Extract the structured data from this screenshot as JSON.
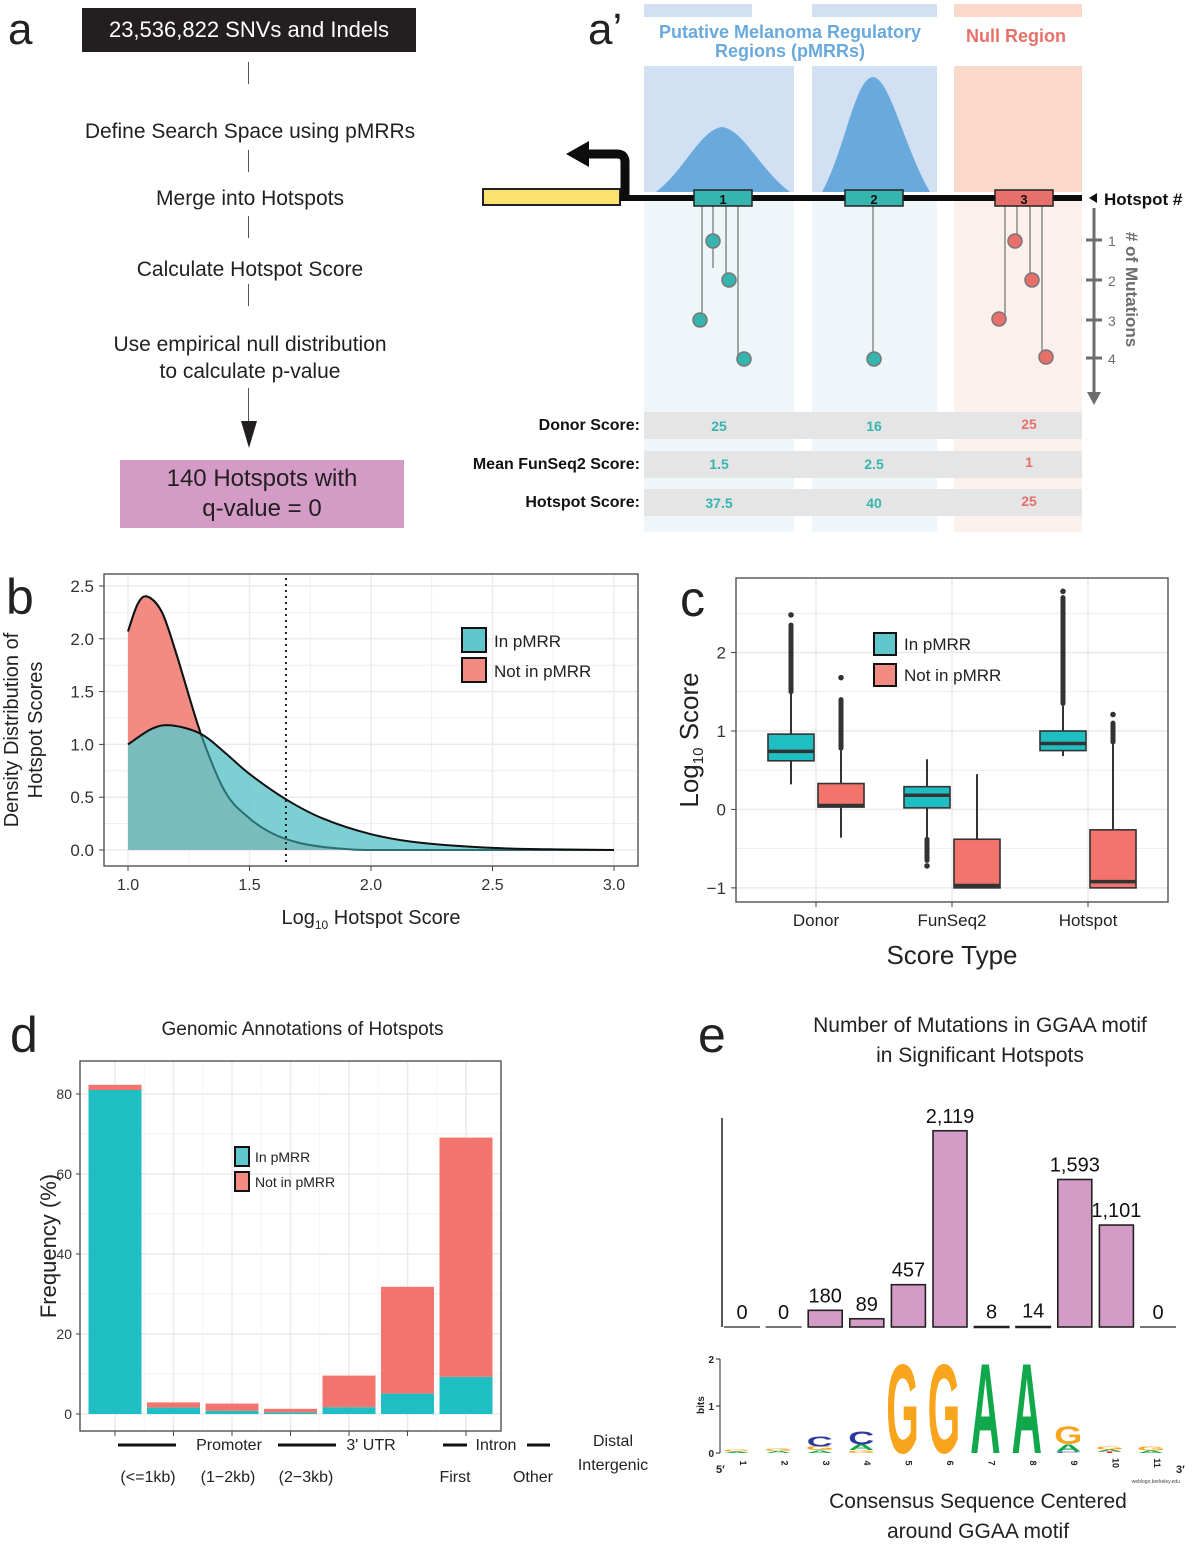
{
  "panels": {
    "a": {
      "letter": "a",
      "top_box": "23,536,822 SNVs and Indels",
      "steps": [
        "Define Search Space using pMRRs",
        "Merge into Hotspots",
        "Calculate Hotspot Score",
        "Use empirical null distribution",
        "to calculate p-value"
      ],
      "result_line1": "140 Hotspots with",
      "result_line2": "q-value = 0",
      "colors": {
        "top_box": "#231f20",
        "result_box": "#d39bc6"
      }
    },
    "a_prime": {
      "letter": "a’",
      "region_pmrr_title_line1": "Putative Melanoma Regulatory",
      "region_pmrr_title_line2": "Regions (pMRRs)",
      "region_null_title": "Null Region",
      "hotspot_axis_label": "Hotspot #",
      "mutations_axis_label": "# of Mutations",
      "mutation_ticks": [
        "1",
        "2",
        "3",
        "4"
      ],
      "hotspots": [
        {
          "id": "1",
          "region": "pMRR",
          "mutation_levels": [
            3,
            1,
            2,
            4
          ]
        },
        {
          "id": "2",
          "region": "pMRR",
          "mutation_levels": [
            4
          ]
        },
        {
          "id": "3",
          "region": "null",
          "mutation_levels": [
            3,
            1,
            2,
            4
          ]
        }
      ],
      "score_rows": [
        {
          "label": "Donor Score:",
          "values": [
            "25",
            "16",
            "25"
          ]
        },
        {
          "label": "Mean FunSeq2 Score:",
          "values": [
            "1.5",
            "2.5",
            "1"
          ]
        },
        {
          "label": "Hotspot Score:",
          "values": [
            "37.5",
            "40",
            "25"
          ]
        }
      ],
      "colors": {
        "pmrr": "#6aa9dc",
        "null": "#e8706a",
        "teal": "#36b5ae",
        "gene": "#fce170"
      }
    }
  },
  "chart_data": [
    {
      "panel": "b",
      "letter": "b",
      "type": "area",
      "title": "",
      "xlabel": "Log10 Hotspot Score",
      "xlabel_main": "Log",
      "xlabel_sub": "10",
      "xlabel_rest": " Hotspot Score",
      "ylabel_line1": "Density Distribution of",
      "ylabel_line2": "Hotspot Scores",
      "xlim": [
        1.0,
        3.0
      ],
      "ylim": [
        0.0,
        2.5
      ],
      "xticks": [
        "1.0",
        "1.5",
        "2.0",
        "2.5",
        "3.0"
      ],
      "yticks": [
        "0.0",
        "0.5",
        "1.0",
        "1.5",
        "2.0",
        "2.5"
      ],
      "grid": true,
      "vline_x": 1.65,
      "legend_position": "top-right",
      "series": [
        {
          "name": "In pMRR",
          "color": "#5fc6cb",
          "x": [
            1.0,
            1.1,
            1.18,
            1.3,
            1.4,
            1.5,
            1.65,
            1.8,
            2.0,
            2.2,
            2.5,
            2.8,
            3.0
          ],
          "y": [
            1.0,
            1.15,
            1.18,
            1.1,
            0.92,
            0.72,
            0.48,
            0.3,
            0.15,
            0.07,
            0.02,
            0.005,
            0.0
          ]
        },
        {
          "name": "Not in pMRR",
          "color": "#f28b82",
          "x": [
            1.0,
            1.04,
            1.08,
            1.14,
            1.2,
            1.3,
            1.4,
            1.5,
            1.6,
            1.7,
            1.8,
            1.9,
            2.0,
            2.5,
            3.0
          ],
          "y": [
            2.07,
            2.33,
            2.4,
            2.25,
            1.85,
            1.1,
            0.55,
            0.3,
            0.15,
            0.07,
            0.03,
            0.01,
            0.0,
            0.0,
            0.0
          ]
        }
      ]
    },
    {
      "panel": "c",
      "letter": "c",
      "type": "box",
      "title": "",
      "xlabel": "Score Type",
      "ylabel_main": "Log",
      "ylabel_sub": "10",
      "ylabel_rest": " Score",
      "categories": [
        "Donor",
        "FunSeq2",
        "Hotspot"
      ],
      "yticks": [
        "-1",
        "0",
        "1",
        "2"
      ],
      "ylim": [
        -1.18,
        2.95
      ],
      "grid": true,
      "legend_position": "top-center",
      "series": [
        {
          "name": "In pMRR",
          "color": "#1fbec3",
          "legend_color": "#5fc6cb",
          "boxes": [
            {
              "whisker_low": 0.32,
              "q1": 0.62,
              "median": 0.74,
              "q3": 0.96,
              "whisker_high": 1.48,
              "outliers_low": null,
              "outliers_high": [
                1.5,
                2.35
              ],
              "outlier_max": 2.48
            },
            {
              "whisker_low": -0.38,
              "q1": 0.02,
              "median": 0.18,
              "q3": 0.29,
              "whisker_high": 0.64,
              "outliers_low": [
                -0.38,
                -0.65
              ],
              "outlier_min": -0.72
            },
            {
              "whisker_low": 0.68,
              "q1": 0.75,
              "median": 0.84,
              "q3": 1.0,
              "whisker_high": 1.32,
              "outliers_low": null,
              "outliers_high": [
                1.35,
                2.7
              ],
              "outlier_max": 2.78
            }
          ]
        },
        {
          "name": "Not in pMRR",
          "color": "#f3746d",
          "legend_color": "#f28b82",
          "boxes": [
            {
              "whisker_low": -0.36,
              "q1": 0.03,
              "median": 0.05,
              "q3": 0.33,
              "whisker_high": 0.75,
              "outliers_high": [
                0.78,
                1.4
              ],
              "outlier_max": 1.68
            },
            {
              "whisker_low": -1.0,
              "q1": -1.0,
              "median": -0.97,
              "q3": -0.38,
              "whisker_high": 0.45,
              "outliers_high": null
            },
            {
              "whisker_low": -1.0,
              "q1": -1.0,
              "median": -0.92,
              "q3": -0.26,
              "whisker_high": 0.85,
              "outliers_high": [
                0.86,
                1.1
              ],
              "outlier_max": 1.21
            }
          ]
        }
      ]
    },
    {
      "panel": "d",
      "letter": "d",
      "type": "bar",
      "stacked": true,
      "title": "Genomic Annotations of Hotspots",
      "ylabel": "Frequency (%)",
      "xlabel": "",
      "ylim": [
        0,
        86
      ],
      "yticks": [
        "0",
        "20",
        "40",
        "60",
        "80"
      ],
      "grid": true,
      "legend_position": "center",
      "categories": [
        "Promoter (<=1kb)",
        "Promoter (1-2kb)",
        "Promoter (2-3kb)",
        "3' UTR",
        "Intron First",
        "Intron Other",
        "Distal Intergenic"
      ],
      "series": [
        {
          "name": "In pMRR",
          "color": "#1fbec3",
          "legend_color": "#5fc6cb",
          "values": [
            81,
            1.6,
            0.8,
            0.4,
            1.7,
            5.1,
            9.3
          ]
        },
        {
          "name": "Not in pMRR",
          "color": "#f3746d",
          "legend_color": "#f28b82",
          "values": [
            1.3,
            1.3,
            1.8,
            0.9,
            7.9,
            26.7,
            59.8
          ]
        }
      ],
      "xaxis_group_labels": {
        "row1": [
          "Promoter",
          "3' UTR",
          "Intron",
          "Distal"
        ],
        "row2": [
          "(<=1kb)",
          "(1−2kb)",
          "(2−3kb)",
          "First",
          "Other",
          "Intergenic"
        ]
      }
    },
    {
      "panel": "e",
      "letter": "e",
      "type": "bar",
      "title_line1": "Number of Mutations in GGAA motif",
      "title_line2": "in Significant Hotspots",
      "xlabel_line1": "Consensus Sequence Centered",
      "xlabel_line2": "around GGAA motif",
      "categories": [
        "1",
        "2",
        "3",
        "4",
        "5",
        "6",
        "7",
        "8",
        "9",
        "10",
        "11"
      ],
      "values": [
        0,
        0,
        180,
        89,
        457,
        2119,
        8,
        14,
        1593,
        1101,
        0
      ],
      "value_labels": [
        "0",
        "0",
        "180",
        "89",
        "457",
        "2,119",
        "8",
        "14",
        "1,593",
        "1,101",
        "0"
      ],
      "color": "#d39bc6",
      "ylim": [
        0,
        2300
      ],
      "logo": {
        "ylabel": "bits",
        "yticks": [
          "0",
          "1",
          "2"
        ],
        "end_5": "5′",
        "end_3": "3′",
        "credit": "weblogo.berkeley.edu",
        "positions": [
          {
            "pos": "1",
            "letters": [
              {
                "l": "G",
                "bits": 0.04
              },
              {
                "l": "A",
                "bits": 0.03
              }
            ]
          },
          {
            "pos": "2",
            "letters": [
              {
                "l": "G",
                "bits": 0.05
              },
              {
                "l": "A",
                "bits": 0.04
              }
            ]
          },
          {
            "pos": "3",
            "letters": [
              {
                "l": "C",
                "bits": 0.22
              },
              {
                "l": "G",
                "bits": 0.08
              },
              {
                "l": "A",
                "bits": 0.06
              }
            ]
          },
          {
            "pos": "4",
            "letters": [
              {
                "l": "C",
                "bits": 0.28
              },
              {
                "l": "A",
                "bits": 0.12
              },
              {
                "l": "G",
                "bits": 0.06
              }
            ]
          },
          {
            "pos": "5",
            "letters": [
              {
                "l": "G",
                "bits": 1.95
              }
            ]
          },
          {
            "pos": "6",
            "letters": [
              {
                "l": "G",
                "bits": 1.95
              }
            ]
          },
          {
            "pos": "7",
            "letters": [
              {
                "l": "A",
                "bits": 1.97
              }
            ]
          },
          {
            "pos": "8",
            "letters": [
              {
                "l": "A",
                "bits": 1.97
              }
            ]
          },
          {
            "pos": "9",
            "letters": [
              {
                "l": "G",
                "bits": 0.38
              },
              {
                "l": "A",
                "bits": 0.16
              },
              {
                "l": "C",
                "bits": 0.03
              }
            ]
          },
          {
            "pos": "10",
            "letters": [
              {
                "l": "G",
                "bits": 0.07
              },
              {
                "l": "A",
                "bits": 0.04
              },
              {
                "l": "T",
                "bits": 0.03
              }
            ]
          },
          {
            "pos": "11",
            "letters": [
              {
                "l": "G",
                "bits": 0.09
              },
              {
                "l": "A",
                "bits": 0.05
              }
            ]
          }
        ],
        "letter_colors": {
          "A": "#10a84a",
          "C": "#2d3a9c",
          "G": "#f8a51d",
          "T": "#e2231a"
        }
      }
    }
  ]
}
